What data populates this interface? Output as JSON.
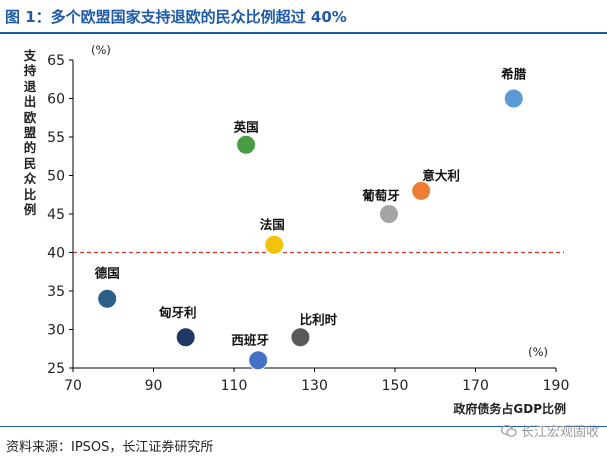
{
  "figure": {
    "title": "图 1：多个欧盟国家支持退欧的民众比例超过 40%",
    "source": "资料来源：IPSOS，长江证券研究所",
    "watermark": "长江宏观固收",
    "watermark_icon": "wechat-icon"
  },
  "chart_data": {
    "type": "scatter",
    "xlabel": "政府债务占GDP比例",
    "ylabel": "支持退出欧盟的民众比例",
    "x_unit": "(%)",
    "y_unit": "(%)",
    "xlim": [
      70,
      190
    ],
    "ylim": [
      25,
      65
    ],
    "x_ticks": [
      70,
      90,
      110,
      130,
      150,
      170,
      190
    ],
    "y_ticks": [
      25,
      30,
      35,
      40,
      45,
      50,
      55,
      60,
      65
    ],
    "reference_line": {
      "y": 40,
      "style": "dashed",
      "color": "#c0392b"
    },
    "grid": false,
    "points": [
      {
        "label": "希腊",
        "x": 179.5,
        "y": 60,
        "color": "#5b9bd5"
      },
      {
        "label": "英国",
        "x": 113,
        "y": 54,
        "color": "#4a9d45"
      },
      {
        "label": "意大利",
        "x": 156.5,
        "y": 48,
        "color": "#ed7d31"
      },
      {
        "label": "葡萄牙",
        "x": 148.5,
        "y": 45,
        "color": "#a5a5a5"
      },
      {
        "label": "法国",
        "x": 120,
        "y": 41,
        "color": "#f4c20d"
      },
      {
        "label": "德国",
        "x": 78.5,
        "y": 34,
        "color": "#2e5f8a"
      },
      {
        "label": "匈牙利",
        "x": 98,
        "y": 29,
        "color": "#1f3864"
      },
      {
        "label": "比利时",
        "x": 126.5,
        "y": 29,
        "color": "#595959"
      },
      {
        "label": "西班牙",
        "x": 116,
        "y": 26,
        "color": "#4472c4"
      }
    ]
  }
}
